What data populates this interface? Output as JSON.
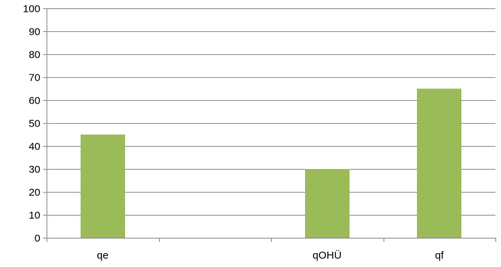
{
  "chart_data": {
    "type": "bar",
    "categories": [
      "qe",
      "",
      "qOHÜ",
      "qf"
    ],
    "values": [
      45,
      null,
      30,
      65
    ],
    "title": "",
    "xlabel": "",
    "ylabel": "",
    "ylim": [
      0,
      100
    ],
    "yticks": [
      0,
      10,
      20,
      30,
      40,
      50,
      60,
      70,
      80,
      90,
      100
    ],
    "grid": true,
    "legend": "none",
    "colors": {
      "bar": "#9bbb59",
      "gridline": "#868686",
      "axis": "#868686",
      "background": "#ffffff"
    }
  }
}
